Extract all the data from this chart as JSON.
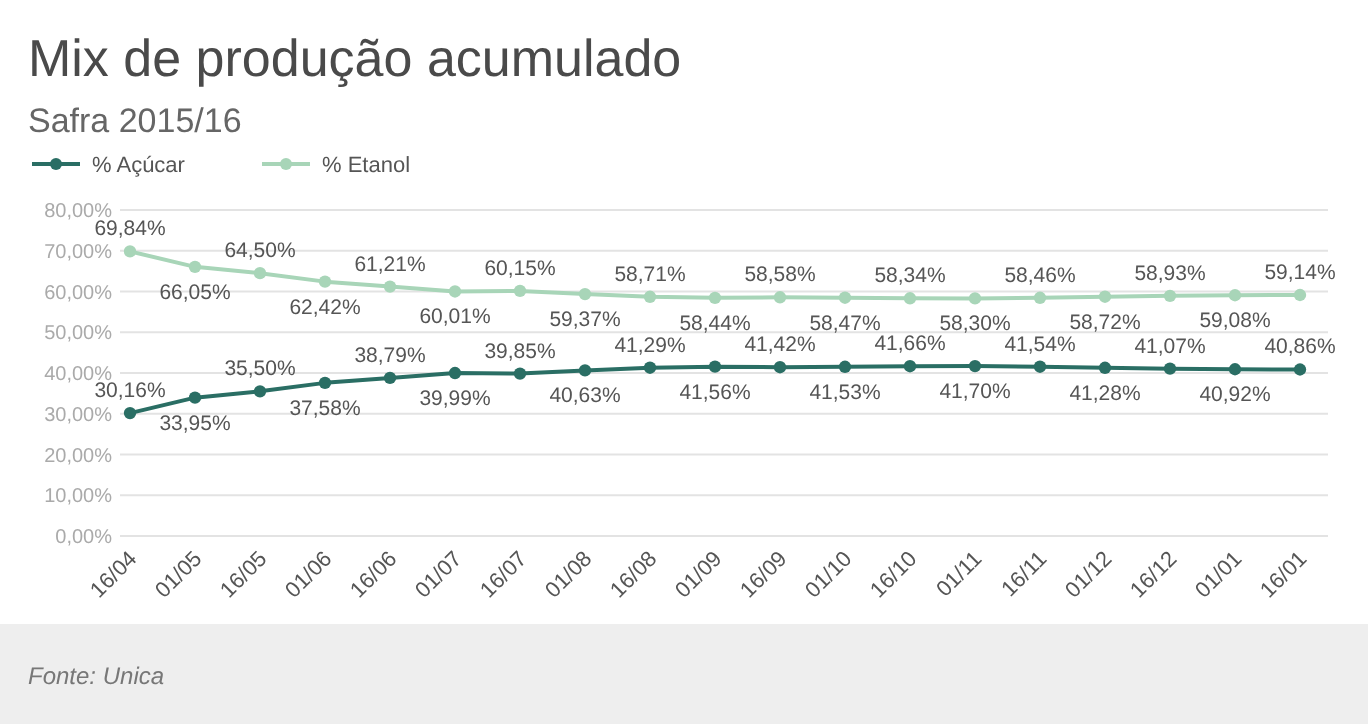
{
  "chart_data": {
    "type": "line",
    "title": "Mix de produção acumulado",
    "subtitle": "Safra 2015/16",
    "categories": [
      "16/04",
      "01/05",
      "16/05",
      "01/06",
      "16/06",
      "01/07",
      "16/07",
      "01/08",
      "16/08",
      "01/09",
      "16/09",
      "01/10",
      "16/10",
      "01/11",
      "16/11",
      "01/12",
      "16/12",
      "01/01",
      "16/01"
    ],
    "series": [
      {
        "name": "% Açúcar",
        "color": "#2a6e64",
        "values": [
          30.16,
          33.95,
          35.5,
          37.58,
          38.79,
          39.99,
          39.85,
          40.63,
          41.29,
          41.56,
          41.42,
          41.53,
          41.66,
          41.7,
          41.54,
          41.28,
          41.07,
          40.92,
          40.86
        ],
        "value_labels": [
          "30,16%",
          "33,95%",
          "35,50%",
          "37,58%",
          "38,79%",
          "39,99%",
          "39,85%",
          "40,63%",
          "41,29%",
          "41,56%",
          "41,42%",
          "41,53%",
          "41,66%",
          "41,70%",
          "41,54%",
          "41,28%",
          "41,07%",
          "40,92%",
          "40,86%"
        ]
      },
      {
        "name": "% Etanol",
        "color": "#a8d5b8",
        "values": [
          69.84,
          66.05,
          64.5,
          62.42,
          61.21,
          60.01,
          60.15,
          59.37,
          58.71,
          58.44,
          58.58,
          58.47,
          58.34,
          58.3,
          58.46,
          58.72,
          58.93,
          59.08,
          59.14
        ],
        "value_labels": [
          "69,84%",
          "66,05%",
          "64,50%",
          "62,42%",
          "61,21%",
          "60,01%",
          "60,15%",
          "59,37%",
          "58,71%",
          "58,44%",
          "58,58%",
          "58,47%",
          "58,34%",
          "58,30%",
          "58,46%",
          "58,72%",
          "58,93%",
          "59,08%",
          "59,14%"
        ]
      }
    ],
    "ylim": [
      0,
      80
    ],
    "yticks": [
      {
        "value": 0,
        "label": "0,00%"
      },
      {
        "value": 10,
        "label": "10,00%"
      },
      {
        "value": 20,
        "label": "20,00%"
      },
      {
        "value": 30,
        "label": "30,00%"
      },
      {
        "value": 40,
        "label": "40,00%"
      },
      {
        "value": 50,
        "label": "50,00%"
      },
      {
        "value": 60,
        "label": "60,00%"
      },
      {
        "value": 70,
        "label": "70,00%"
      },
      {
        "value": 80,
        "label": "80,00%"
      }
    ],
    "grid": "y",
    "legend": "top left",
    "marker": "circle",
    "line_style": "solid",
    "annotations": [
      "Fonte: Unica"
    ]
  }
}
